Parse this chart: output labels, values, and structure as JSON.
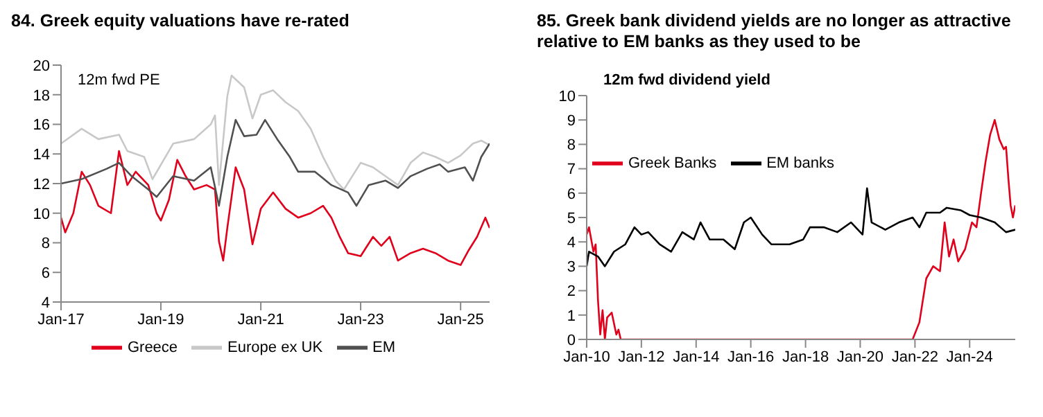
{
  "chart_data": [
    {
      "type": "line",
      "title": "84. Greek equity valuations have re-rated",
      "ylabel": "12m fwd PE",
      "legend": "bottom",
      "grid": false,
      "marker": "none",
      "line_style": "solid",
      "xlim": [
        "2017-01",
        "2025-08"
      ],
      "xticks": [
        {
          "value": "2017-01",
          "label": "Jan-17"
        },
        {
          "value": "2019-01",
          "label": "Jan-19"
        },
        {
          "value": "2021-01",
          "label": "Jan-21"
        },
        {
          "value": "2023-01",
          "label": "Jan-23"
        },
        {
          "value": "2025-01",
          "label": "Jan-25"
        }
      ],
      "ylim": [
        4,
        20
      ],
      "yticks": [
        4,
        6,
        8,
        10,
        12,
        14,
        16,
        18,
        20
      ],
      "series": [
        {
          "name": "Greece",
          "color": "#e0001b",
          "x": [
            "2017-01",
            "2017-02",
            "2017-04",
            "2017-06",
            "2017-08",
            "2017-10",
            "2018-01",
            "2018-03",
            "2018-05",
            "2018-07",
            "2018-10",
            "2018-12",
            "2019-01",
            "2019-03",
            "2019-05",
            "2019-07",
            "2019-09",
            "2019-12",
            "2020-02",
            "2020-03",
            "2020-04",
            "2020-05",
            "2020-07",
            "2020-09",
            "2020-11",
            "2021-01",
            "2021-04",
            "2021-07",
            "2021-10",
            "2022-01",
            "2022-04",
            "2022-06",
            "2022-08",
            "2022-10",
            "2023-01",
            "2023-04",
            "2023-06",
            "2023-08",
            "2023-10",
            "2024-01",
            "2024-04",
            "2024-07",
            "2024-10",
            "2025-01",
            "2025-03",
            "2025-05",
            "2025-07",
            "2025-08"
          ],
          "values": [
            9.7,
            8.7,
            10,
            12.8,
            11.9,
            10.5,
            10,
            14.2,
            11.9,
            12.8,
            11.9,
            10,
            9.5,
            10.9,
            13.6,
            12.5,
            11.6,
            11.9,
            11.6,
            8.1,
            6.8,
            9,
            13.1,
            11.6,
            7.9,
            10.3,
            11.4,
            10.3,
            9.7,
            10,
            10.5,
            9.7,
            8.4,
            7.3,
            7.1,
            8.4,
            7.8,
            8.4,
            6.8,
            7.3,
            7.6,
            7.3,
            6.8,
            6.5,
            7.5,
            8.4,
            9.7,
            9.0
          ]
        },
        {
          "name": "Europe ex UK",
          "color": "#c8c8c8",
          "x": [
            "2017-01",
            "2017-06",
            "2017-10",
            "2018-03",
            "2018-05",
            "2018-09",
            "2018-11",
            "2019-04",
            "2019-09",
            "2020-01",
            "2020-02",
            "2020-03",
            "2020-05",
            "2020-06",
            "2020-09",
            "2020-11",
            "2021-01",
            "2021-04",
            "2021-07",
            "2021-10",
            "2022-01",
            "2022-04",
            "2022-07",
            "2022-09",
            "2023-01",
            "2023-04",
            "2023-07",
            "2023-10",
            "2024-01",
            "2024-04",
            "2024-07",
            "2024-10",
            "2025-01",
            "2025-04",
            "2025-06",
            "2025-08"
          ],
          "values": [
            14.7,
            15.7,
            15,
            15.3,
            14.2,
            13.8,
            12.3,
            14.7,
            15,
            16,
            16.6,
            11.9,
            17.9,
            19.3,
            18.5,
            16.4,
            18,
            18.3,
            17.5,
            16.9,
            15.7,
            13.8,
            12.2,
            11.6,
            13.4,
            13.1,
            12.5,
            11.9,
            13.4,
            14.1,
            13.8,
            13.4,
            13.9,
            14.7,
            14.9,
            14.6
          ]
        },
        {
          "name": "EM",
          "color": "#505050",
          "x": [
            "2017-01",
            "2017-06",
            "2017-12",
            "2018-03",
            "2018-06",
            "2018-10",
            "2018-12",
            "2019-04",
            "2019-09",
            "2020-01",
            "2020-03",
            "2020-05",
            "2020-07",
            "2020-09",
            "2020-12",
            "2021-02",
            "2021-05",
            "2021-08",
            "2021-10",
            "2022-02",
            "2022-06",
            "2022-10",
            "2022-12",
            "2023-03",
            "2023-07",
            "2023-10",
            "2024-01",
            "2024-05",
            "2024-08",
            "2024-10",
            "2025-02",
            "2025-04",
            "2025-06",
            "2025-08"
          ],
          "values": [
            12,
            12.3,
            13,
            13.4,
            12.5,
            11.6,
            11.1,
            12.5,
            12.2,
            13.1,
            10.5,
            13.8,
            16.3,
            15.2,
            15.3,
            16.3,
            15,
            13.8,
            12.8,
            12.8,
            11.9,
            11.4,
            10.5,
            11.9,
            12.2,
            11.7,
            12.5,
            13,
            13.3,
            12.8,
            13.1,
            12.2,
            13.8,
            14.7
          ]
        }
      ]
    },
    {
      "type": "line",
      "title": "85. Greek bank dividend yields are no longer as attractive relative to EM banks as they used to be",
      "ylabel": "12m fwd dividend yield",
      "legend": "top left",
      "grid": false,
      "marker": "none",
      "line_style": "solid",
      "xlim": [
        "2010-01",
        "2025-09"
      ],
      "xticks": [
        {
          "value": "2010-01",
          "label": "Jan-10"
        },
        {
          "value": "2012-01",
          "label": "Jan-12"
        },
        {
          "value": "2014-01",
          "label": "Jan-14"
        },
        {
          "value": "2016-01",
          "label": "Jan-16"
        },
        {
          "value": "2018-01",
          "label": "Jan-18"
        },
        {
          "value": "2020-01",
          "label": "Jan-20"
        },
        {
          "value": "2022-01",
          "label": "Jan-22"
        },
        {
          "value": "2024-01",
          "label": "Jan-24"
        }
      ],
      "ylim": [
        0,
        10
      ],
      "yticks": [
        0,
        1,
        2,
        3,
        4,
        5,
        6,
        7,
        8,
        9,
        10
      ],
      "series": [
        {
          "name": "Greek Banks",
          "color": "#e0001b",
          "x": [
            "2010-01",
            "2010-02",
            "2010-04",
            "2010-05",
            "2010-06",
            "2010-07",
            "2010-08",
            "2010-09",
            "2010-10",
            "2010-12",
            "2011-02",
            "2011-03",
            "2011-04",
            "2021-12",
            "2022-03",
            "2022-06",
            "2022-09",
            "2022-12",
            "2023-02",
            "2023-04",
            "2023-06",
            "2023-08",
            "2023-11",
            "2024-02",
            "2024-04",
            "2024-06",
            "2024-08",
            "2024-10",
            "2024-12",
            "2025-02",
            "2025-04",
            "2025-05",
            "2025-06",
            "2025-07",
            "2025-08",
            "2025-09"
          ],
          "values": [
            4.3,
            4.6,
            3.6,
            3.9,
            1.6,
            0.2,
            1.2,
            0,
            0.9,
            1.1,
            0.2,
            0.4,
            0,
            0,
            0.7,
            2.5,
            3,
            2.8,
            4.8,
            3.4,
            4.1,
            3.2,
            3.7,
            4.8,
            4.6,
            6,
            7.3,
            8.4,
            9,
            8.2,
            7.8,
            7.9,
            6.6,
            5.5,
            5,
            5.5
          ]
        },
        {
          "name": "EM banks",
          "color": "#000000",
          "x": [
            "2010-01",
            "2010-02",
            "2010-06",
            "2010-09",
            "2011-01",
            "2011-06",
            "2011-10",
            "2012-01",
            "2012-04",
            "2012-09",
            "2013-02",
            "2013-07",
            "2013-12",
            "2014-03",
            "2014-07",
            "2015-01",
            "2015-06",
            "2015-10",
            "2016-01",
            "2016-06",
            "2016-10",
            "2017-06",
            "2017-12",
            "2018-03",
            "2018-09",
            "2019-03",
            "2019-09",
            "2020-02",
            "2020-04",
            "2020-06",
            "2020-12",
            "2021-06",
            "2021-12",
            "2022-03",
            "2022-06",
            "2022-12",
            "2023-03",
            "2023-09",
            "2024-01",
            "2024-06",
            "2024-12",
            "2025-05",
            "2025-09"
          ],
          "values": [
            3,
            3.6,
            3.4,
            3,
            3.6,
            3.9,
            4.6,
            4.3,
            4.4,
            3.9,
            3.6,
            4.4,
            4.1,
            4.8,
            4.1,
            4.1,
            3.7,
            4.8,
            5,
            4.3,
            3.9,
            3.9,
            4.1,
            4.6,
            4.6,
            4.4,
            4.8,
            4.3,
            6.2,
            4.8,
            4.5,
            4.8,
            5,
            4.6,
            5.2,
            5.2,
            5.4,
            5.3,
            5.1,
            5,
            4.8,
            4.4,
            4.5
          ]
        }
      ]
    }
  ]
}
